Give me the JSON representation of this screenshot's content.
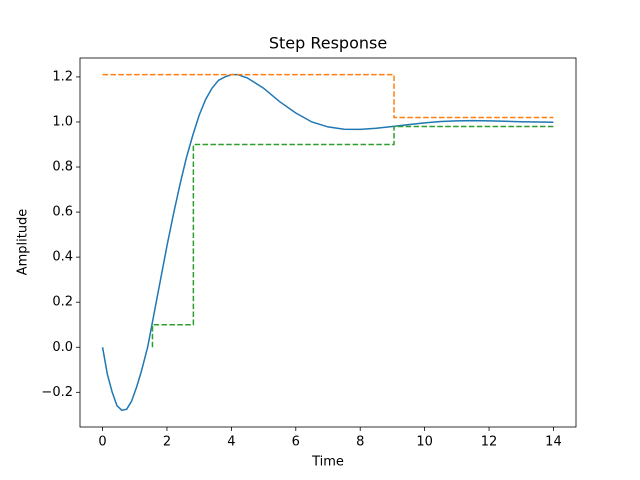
{
  "chart_data": {
    "type": "line",
    "title": "Step Response",
    "xlabel": "Time",
    "ylabel": "Amplitude",
    "xlim": [
      -0.7,
      14.7
    ],
    "xticks": [
      0,
      2,
      4,
      6,
      8,
      10,
      12,
      14
    ],
    "ylim": [
      -0.354,
      1.284
    ],
    "yticks": [
      {
        "value": -0.2,
        "label": "−0.2"
      },
      {
        "value": 0,
        "label": "0.0"
      },
      0.2,
      0.4,
      0.6,
      0.8,
      {
        "value": 1,
        "label": "1.0"
      },
      1.2
    ],
    "series": [
      {
        "color": "#1f77b4",
        "linestyle": "solid",
        "x": [
          0,
          0.15,
          0.3,
          0.45,
          0.6,
          0.75,
          0.9,
          1.05,
          1.2,
          1.4,
          1.6,
          1.8,
          2.0,
          2.2,
          2.4,
          2.6,
          2.8,
          3.0,
          3.2,
          3.4,
          3.6,
          3.8,
          4.0,
          4.2,
          4.5,
          5.0,
          5.5,
          6.0,
          6.5,
          7.0,
          7.5,
          8.0,
          8.5,
          9.0,
          9.5,
          10.0,
          10.5,
          11.0,
          11.5,
          12.0,
          12.5,
          13.0,
          13.5,
          14.0
        ],
        "values": [
          0,
          -0.12,
          -0.2,
          -0.26,
          -0.28,
          -0.275,
          -0.24,
          -0.18,
          -0.11,
          0.0,
          0.15,
          0.3,
          0.45,
          0.59,
          0.72,
          0.84,
          0.94,
          1.03,
          1.1,
          1.15,
          1.185,
          1.2,
          1.21,
          1.21,
          1.195,
          1.15,
          1.09,
          1.04,
          1.0,
          0.978,
          0.968,
          0.967,
          0.972,
          0.98,
          0.988,
          0.996,
          1.002,
          1.005,
          1.006,
          1.005,
          1.003,
          1.001,
          1.0,
          0.999
        ]
      },
      {
        "color": "#ff7f0e",
        "linestyle": "dashed",
        "x": [
          0,
          9.05,
          9.05,
          14
        ],
        "values": [
          1.21,
          1.21,
          1.02,
          1.02
        ]
      },
      {
        "color": "#2ca02c",
        "linestyle": "dashed",
        "x": [
          1.55,
          1.55,
          2.82,
          2.82,
          9.05,
          9.05,
          14
        ],
        "values": [
          0,
          0.1,
          0.1,
          0.9,
          0.9,
          0.98,
          0.98
        ]
      }
    ]
  }
}
